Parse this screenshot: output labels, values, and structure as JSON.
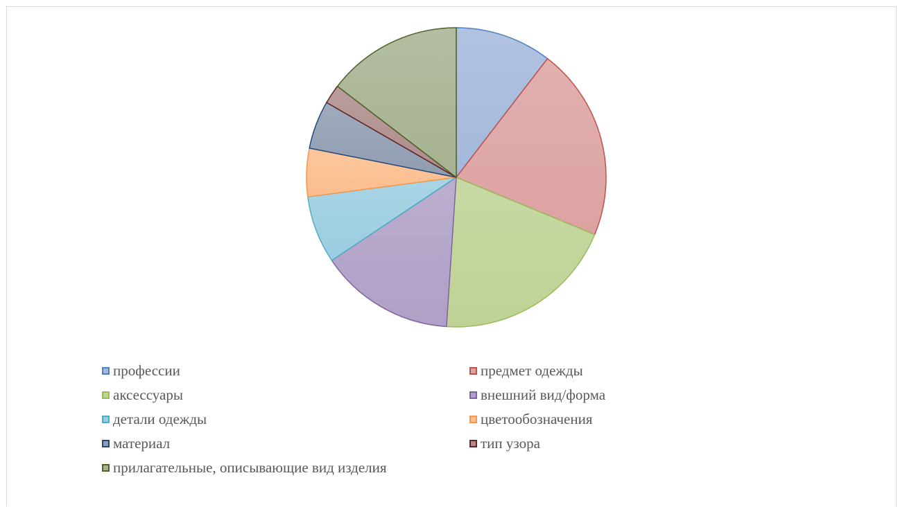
{
  "chart_data": {
    "type": "pie",
    "title": "",
    "start_angle_deg": 0,
    "direction": "clockwise",
    "legend_position": "bottom",
    "categories": [
      "профессии",
      "предмет одежды",
      "аксессуары",
      "внешний вид/форма",
      "детали одежды",
      "цветообозначения",
      "материал",
      "тип узора",
      "прилагательные, описывающие вид изделия"
    ],
    "values": [
      10,
      20,
      19,
      14,
      7,
      5,
      5,
      2,
      14
    ],
    "fill_colors": [
      "#a3b8db",
      "#dca2a1",
      "#bed295",
      "#afa0c6",
      "#9acde0",
      "#fbbd8d",
      "#8f9cb1",
      "#ad8c8b",
      "#a6b290"
    ],
    "edge_colors": [
      "#4f81bd",
      "#c0504d",
      "#9bbb59",
      "#8064a2",
      "#4bacc6",
      "#f79646",
      "#1f497d",
      "#632523",
      "#4f6228"
    ]
  }
}
